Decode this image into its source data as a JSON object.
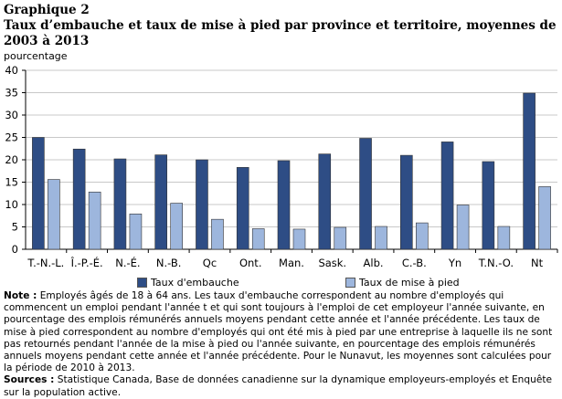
{
  "header": {
    "label": "Graphique  2",
    "title": "Taux d’embauche et taux de mise à pied par province et territoire, moyennes de 2003  à 2013"
  },
  "colors": {
    "series1": "#2e4d85",
    "series2": "#9db6dd",
    "grid": "#c8c8c8",
    "axis": "#000000"
  },
  "chart_data": {
    "type": "bar",
    "title": "Taux d’embauche et taux de mise à pied par province et territoire, moyennes de 2003  à 2013",
    "ylabel": "pourcentage",
    "xlabel": "",
    "ylim": [
      0,
      40
    ],
    "yticks": [
      0,
      5,
      10,
      15,
      20,
      25,
      30,
      35,
      40
    ],
    "grid": true,
    "legend_position": "bottom",
    "categories": [
      "T.-N.-L.",
      "Î.-P.-É.",
      "N.-É.",
      "N.-B.",
      "Qc",
      "Ont.",
      "Man.",
      "Sask.",
      "Alb.",
      "C.-B.",
      "Yn",
      "T.N.-O.",
      "Nt"
    ],
    "series": [
      {
        "name": "Taux d'embauche",
        "values": [
          25.0,
          22.4,
          20.2,
          21.1,
          20.0,
          18.3,
          19.8,
          21.3,
          24.8,
          21.0,
          24.0,
          19.6,
          34.9
        ]
      },
      {
        "name": "Taux de mise à pied",
        "values": [
          15.6,
          12.8,
          7.9,
          10.3,
          6.7,
          4.6,
          4.5,
          4.9,
          5.1,
          5.9,
          9.9,
          5.1,
          14.0
        ]
      }
    ]
  },
  "note": {
    "label": "Note :",
    "text": " Employés âgés de 18 à 64 ans. Les taux d'embauche correspondent au nombre d'employés qui commencent un emploi pendant l'année t et qui sont toujours à l'emploi de cet employeur l'année suivante, en pourcentage des emplois rémunérés annuels moyens pendant cette année et l'année précédente. Les taux de mise à pied correspondent au nombre d'employés qui ont été mis à pied par une entreprise à laquelle ils ne sont pas retournés pendant l'année de la mise à pied ou l'année suivante, en pourcentage des emplois rémunérés annuels moyens pendant cette année et l'année précédente. Pour le Nunavut, les moyennes sont calculées pour la période de 2010 à 2013."
  },
  "sources": {
    "label": "Sources :",
    "text": " Statistique Canada, Base de données canadienne sur la dynamique employeurs-employés et Enquête sur la population active."
  }
}
